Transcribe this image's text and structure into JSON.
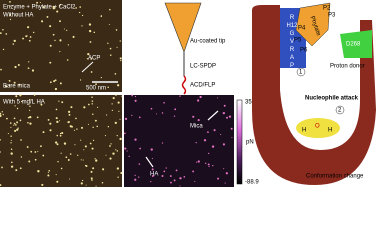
{
  "afm_top": {
    "condition": "Enzyme + Phytate + CaCl2",
    "subcondition": "Without HA",
    "label": "ACP",
    "substrate": "Bare mica",
    "scale": "500 nm"
  },
  "afm_bottom": {
    "condition": "With 5 mg/L HA"
  },
  "force_map": {
    "labels": [
      "Mica",
      "HA"
    ],
    "colorbar_max": "351.1",
    "colorbar_unit": "pN",
    "colorbar_min": "-88.9"
  },
  "tip": {
    "labels": [
      "Au-coated tip",
      "LC-SPDP",
      "ACD/FLP"
    ]
  },
  "mechanism": {
    "helix": "R H12 G V R A P",
    "phytate": "Phytate",
    "phosphates": [
      "P2",
      "P3",
      "P4",
      "P5",
      "P6"
    ],
    "proton_donor": "Proton donor",
    "residue": "D268",
    "nucleophile": "Nucleophile attack",
    "steps": [
      "1",
      "2"
    ],
    "water": [
      "H",
      "O",
      "H"
    ],
    "caption": "Conformation change"
  }
}
